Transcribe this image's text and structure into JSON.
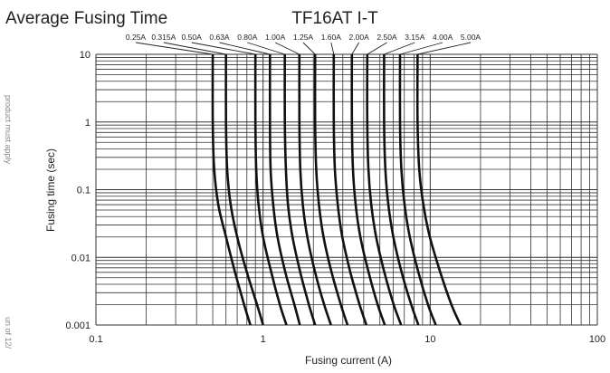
{
  "chart_data": {
    "type": "line",
    "title": "TF16AT I-T",
    "subtitle": "Average Fusing Time",
    "xlabel": "Fusing current (A)",
    "ylabel": "Fusing time (sec)",
    "x_scale": "log",
    "y_scale": "log",
    "xlim": [
      0.1,
      100
    ],
    "ylim": [
      0.001,
      10
    ],
    "x_tick_labels": [
      {
        "value": 0.1,
        "label": "0.1"
      },
      {
        "value": 1,
        "label": "1"
      },
      {
        "value": 10,
        "label": "10"
      },
      {
        "value": 100,
        "label": "100"
      }
    ],
    "y_tick_labels": [
      {
        "value": 10,
        "label": "10"
      },
      {
        "value": 1,
        "label": "1"
      },
      {
        "value": 0.1,
        "label": "0.1"
      },
      {
        "value": 0.01,
        "label": "0.01"
      },
      {
        "value": 0.001,
        "label": "0.001"
      }
    ],
    "grid": true,
    "legend": "ratings labeled above each curve",
    "series": [
      {
        "name": "0.25A",
        "points": [
          [
            0.5,
            10
          ],
          [
            0.5,
            1
          ],
          [
            0.51,
            0.2
          ],
          [
            0.54,
            0.06
          ],
          [
            0.6,
            0.02
          ],
          [
            0.68,
            0.006
          ],
          [
            0.77,
            0.002
          ],
          [
            0.84,
            0.001
          ]
        ]
      },
      {
        "name": "0.315A",
        "points": [
          [
            0.6,
            10
          ],
          [
            0.6,
            1
          ],
          [
            0.61,
            0.2
          ],
          [
            0.64,
            0.06
          ],
          [
            0.7,
            0.02
          ],
          [
            0.8,
            0.006
          ],
          [
            0.92,
            0.002
          ],
          [
            1.0,
            0.001
          ]
        ]
      },
      {
        "name": "0.50A",
        "points": [
          [
            0.9,
            10
          ],
          [
            0.9,
            1
          ],
          [
            0.91,
            0.2
          ],
          [
            0.94,
            0.06
          ],
          [
            1.0,
            0.02
          ],
          [
            1.12,
            0.006
          ],
          [
            1.26,
            0.002
          ],
          [
            1.38,
            0.001
          ]
        ]
      },
      {
        "name": "0.63A",
        "points": [
          [
            1.1,
            10
          ],
          [
            1.1,
            1
          ],
          [
            1.11,
            0.2
          ],
          [
            1.15,
            0.06
          ],
          [
            1.22,
            0.02
          ],
          [
            1.36,
            0.006
          ],
          [
            1.54,
            0.002
          ],
          [
            1.66,
            0.001
          ]
        ]
      },
      {
        "name": "0.80A",
        "points": [
          [
            1.35,
            10
          ],
          [
            1.35,
            1
          ],
          [
            1.37,
            0.2
          ],
          [
            1.41,
            0.06
          ],
          [
            1.5,
            0.02
          ],
          [
            1.67,
            0.006
          ],
          [
            1.88,
            0.002
          ],
          [
            2.05,
            0.001
          ]
        ]
      },
      {
        "name": "1.00A",
        "points": [
          [
            1.65,
            10
          ],
          [
            1.65,
            1
          ],
          [
            1.67,
            0.2
          ],
          [
            1.73,
            0.06
          ],
          [
            1.84,
            0.02
          ],
          [
            2.05,
            0.006
          ],
          [
            2.32,
            0.002
          ],
          [
            2.55,
            0.001
          ]
        ]
      },
      {
        "name": "1.25A",
        "points": [
          [
            2.05,
            10
          ],
          [
            2.05,
            1
          ],
          [
            2.08,
            0.2
          ],
          [
            2.16,
            0.06
          ],
          [
            2.3,
            0.02
          ],
          [
            2.57,
            0.006
          ],
          [
            2.92,
            0.002
          ],
          [
            3.2,
            0.001
          ]
        ]
      },
      {
        "name": "1.60A",
        "points": [
          [
            2.65,
            10
          ],
          [
            2.65,
            1
          ],
          [
            2.69,
            0.2
          ],
          [
            2.8,
            0.06
          ],
          [
            2.98,
            0.02
          ],
          [
            3.33,
            0.006
          ],
          [
            3.78,
            0.002
          ],
          [
            4.15,
            0.001
          ]
        ]
      },
      {
        "name": "2.00A",
        "points": [
          [
            3.4,
            10
          ],
          [
            3.4,
            1
          ],
          [
            3.45,
            0.2
          ],
          [
            3.58,
            0.06
          ],
          [
            3.82,
            0.02
          ],
          [
            4.28,
            0.006
          ],
          [
            4.85,
            0.002
          ],
          [
            5.35,
            0.001
          ]
        ]
      },
      {
        "name": "2.50A",
        "points": [
          [
            4.2,
            10
          ],
          [
            4.2,
            1
          ],
          [
            4.27,
            0.2
          ],
          [
            4.44,
            0.06
          ],
          [
            4.75,
            0.02
          ],
          [
            5.32,
            0.006
          ],
          [
            6.05,
            0.002
          ],
          [
            6.7,
            0.001
          ]
        ]
      },
      {
        "name": "3.15A",
        "points": [
          [
            5.3,
            10
          ],
          [
            5.3,
            1
          ],
          [
            5.39,
            0.2
          ],
          [
            5.62,
            0.06
          ],
          [
            6.02,
            0.02
          ],
          [
            6.75,
            0.006
          ],
          [
            7.7,
            0.002
          ],
          [
            8.5,
            0.001
          ]
        ]
      },
      {
        "name": "4.00A",
        "points": [
          [
            6.6,
            10
          ],
          [
            6.6,
            1
          ],
          [
            6.72,
            0.2
          ],
          [
            7.02,
            0.06
          ],
          [
            7.55,
            0.02
          ],
          [
            8.5,
            0.006
          ],
          [
            9.7,
            0.002
          ],
          [
            10.8,
            0.001
          ]
        ]
      },
      {
        "name": "5.00A",
        "points": [
          [
            8.4,
            10
          ],
          [
            8.4,
            1
          ],
          [
            8.6,
            0.2
          ],
          [
            9.1,
            0.06
          ],
          [
            9.95,
            0.02
          ],
          [
            11.5,
            0.006
          ],
          [
            13.4,
            0.002
          ],
          [
            15.2,
            0.001
          ]
        ]
      }
    ]
  }
}
